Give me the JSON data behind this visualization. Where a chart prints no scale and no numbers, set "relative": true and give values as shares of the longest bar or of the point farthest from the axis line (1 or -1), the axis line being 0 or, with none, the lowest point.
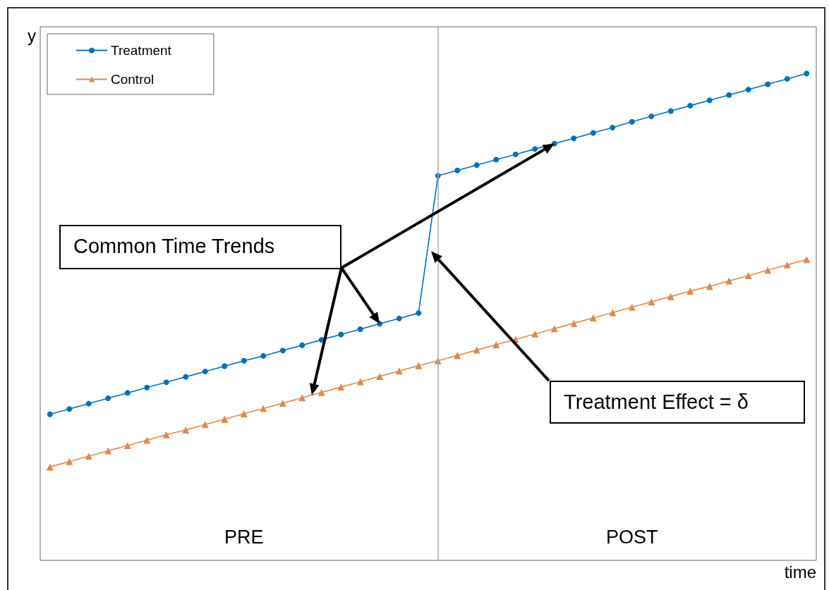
{
  "chart_data": {
    "type": "line",
    "relative": true,
    "xlabel": "time",
    "ylabel": "y",
    "grid": false,
    "legend": "top left",
    "line_style": "solid",
    "categories": [
      null,
      null,
      null,
      null,
      null,
      null,
      null,
      null,
      null,
      null,
      null,
      null,
      null,
      null,
      null,
      null,
      null,
      null,
      null,
      null,
      null,
      null,
      null,
      null,
      null,
      null,
      null,
      null,
      null,
      null,
      null,
      null,
      null,
      null,
      null,
      null,
      null,
      null,
      null,
      null
    ],
    "series": [
      {
        "name": "Treatment",
        "color": "#0072bd",
        "marker": "circle",
        "values": [
          0.3,
          0.311,
          0.322,
          0.333,
          0.344,
          0.355,
          0.366,
          0.377,
          0.388,
          0.399,
          0.41,
          0.42,
          0.431,
          0.442,
          0.453,
          0.464,
          0.475,
          0.486,
          0.497,
          0.508,
          0.79,
          0.801,
          0.812,
          0.823,
          0.834,
          0.845,
          0.856,
          0.867,
          0.878,
          0.889,
          0.901,
          0.912,
          0.923,
          0.934,
          0.945,
          0.956,
          0.967,
          0.978,
          0.989,
          1.0
        ]
      },
      {
        "name": "Control",
        "color": "#e0884a",
        "marker": "triangle",
        "values": [
          0.192,
          0.203,
          0.214,
          0.225,
          0.236,
          0.247,
          0.258,
          0.268,
          0.279,
          0.29,
          0.301,
          0.312,
          0.323,
          0.334,
          0.345,
          0.356,
          0.367,
          0.378,
          0.389,
          0.4,
          0.41,
          0.421,
          0.432,
          0.443,
          0.454,
          0.465,
          0.476,
          0.487,
          0.498,
          0.509,
          0.52,
          0.531,
          0.542,
          0.553,
          0.563,
          0.574,
          0.585,
          0.596,
          0.607,
          0.618
        ]
      }
    ],
    "annotations": [
      "Common Time Trends",
      "Treatment Effect = δ",
      "PRE",
      "POST"
    ]
  }
}
